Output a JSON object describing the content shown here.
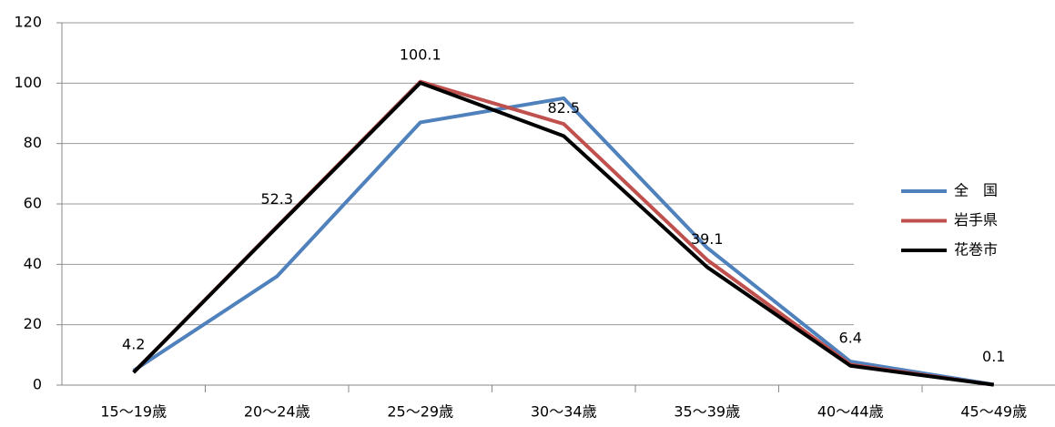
{
  "chart_data": {
    "type": "line",
    "categories": [
      "15〜19歳",
      "20〜24歳",
      "25〜29歳",
      "30〜34歳",
      "35〜39歳",
      "40〜44歳",
      "45〜49歳"
    ],
    "series": [
      {
        "name": "全　国",
        "color": "#4f81bd",
        "values": [
          4.8,
          36,
          87,
          95,
          45.5,
          7.8,
          0.2
        ]
      },
      {
        "name": "岩手県",
        "color": "#c0504d",
        "values": [
          4.2,
          52.5,
          100.5,
          86.5,
          41.5,
          6.8,
          0.1
        ]
      },
      {
        "name": "花巻市",
        "color": "#000000",
        "values": [
          4.2,
          52.3,
          100.1,
          82.5,
          39.1,
          6.4,
          0.1
        ],
        "show_labels": true
      }
    ],
    "ylim": [
      0,
      120
    ],
    "yticks": [
      0,
      20,
      40,
      60,
      80,
      100,
      120
    ],
    "grid": true,
    "legend": "right"
  }
}
